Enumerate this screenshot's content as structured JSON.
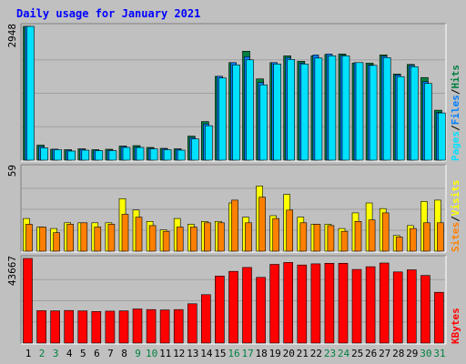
{
  "chart_data": [
    {
      "type": "bar",
      "title": "Daily usage for January 2021",
      "categories": [
        "1",
        "2",
        "3",
        "4",
        "5",
        "6",
        "7",
        "8",
        "9",
        "10",
        "11",
        "12",
        "13",
        "14",
        "15",
        "16",
        "17",
        "18",
        "19",
        "20",
        "21",
        "22",
        "23",
        "24",
        "25",
        "26",
        "27",
        "28",
        "29",
        "30",
        "31"
      ],
      "weekend_days": [
        2,
        3,
        9,
        10,
        16,
        17,
        23,
        24,
        30,
        31
      ],
      "ymax_label": "2948",
      "ylim": [
        0,
        2948
      ],
      "legend": [
        "Pages",
        "/",
        "Files",
        "/",
        "Hits"
      ],
      "series": [
        {
          "name": "Hits",
          "color": "#008040",
          "values": [
            2948,
            330,
            240,
            230,
            250,
            230,
            240,
            310,
            320,
            280,
            260,
            250,
            530,
            850,
            1850,
            2150,
            2400,
            1790,
            2150,
            2300,
            2180,
            2300,
            2330,
            2340,
            2140,
            2140,
            2320,
            1900,
            2110,
            1820,
            1100
          ]
        },
        {
          "name": "Files",
          "color": "#0080ff",
          "values": [
            2948,
            300,
            240,
            220,
            240,
            220,
            220,
            300,
            290,
            260,
            250,
            240,
            500,
            800,
            1850,
            2150,
            2280,
            1710,
            2150,
            2260,
            2140,
            2320,
            2340,
            2310,
            2150,
            2100,
            2290,
            1880,
            2090,
            1730,
            1050
          ]
        },
        {
          "name": "Pages",
          "color": "#00e0ff",
          "values": [
            2948,
            270,
            230,
            200,
            220,
            210,
            210,
            280,
            280,
            250,
            230,
            220,
            470,
            760,
            1810,
            2100,
            2210,
            1660,
            2120,
            2220,
            2120,
            2250,
            2300,
            2300,
            2150,
            2090,
            2260,
            1840,
            2060,
            1690,
            1040
          ]
        }
      ]
    },
    {
      "type": "bar",
      "ymax_label": "59",
      "ylim": [
        0,
        59
      ],
      "legend": [
        "Sites",
        "/",
        "Visits"
      ],
      "series": [
        {
          "name": "Visits",
          "color": "#ffff00",
          "values": [
            23,
            17,
            16,
            20,
            20,
            20,
            20,
            37,
            29,
            21,
            15,
            23,
            19,
            21,
            21,
            34,
            24,
            46,
            25,
            40,
            24,
            19,
            19,
            16,
            27,
            34,
            30,
            11,
            18,
            35,
            36
          ]
        },
        {
          "name": "Sites",
          "color": "#ff8000",
          "values": [
            19,
            17,
            13,
            19,
            20,
            17,
            19,
            26,
            24,
            18,
            14,
            17,
            17,
            20,
            20,
            36,
            20,
            38,
            23,
            29,
            20,
            19,
            18,
            14,
            21,
            22,
            27,
            10,
            16,
            20,
            20
          ]
        }
      ]
    },
    {
      "type": "bar",
      "ymax_label": "43667",
      "ylim": [
        0,
        43667
      ],
      "legend": [
        "KBytes"
      ],
      "series": [
        {
          "name": "KBytes",
          "color": "#ff0000",
          "values": [
            43667,
            16700,
            16600,
            16800,
            16600,
            16300,
            16500,
            16600,
            17600,
            17300,
            17100,
            17300,
            20300,
            25000,
            34600,
            37000,
            39000,
            33900,
            40600,
            41600,
            40300,
            40900,
            41200,
            41200,
            38000,
            39400,
            41300,
            36700,
            37800,
            34900,
            26200
          ]
        }
      ]
    }
  ]
}
